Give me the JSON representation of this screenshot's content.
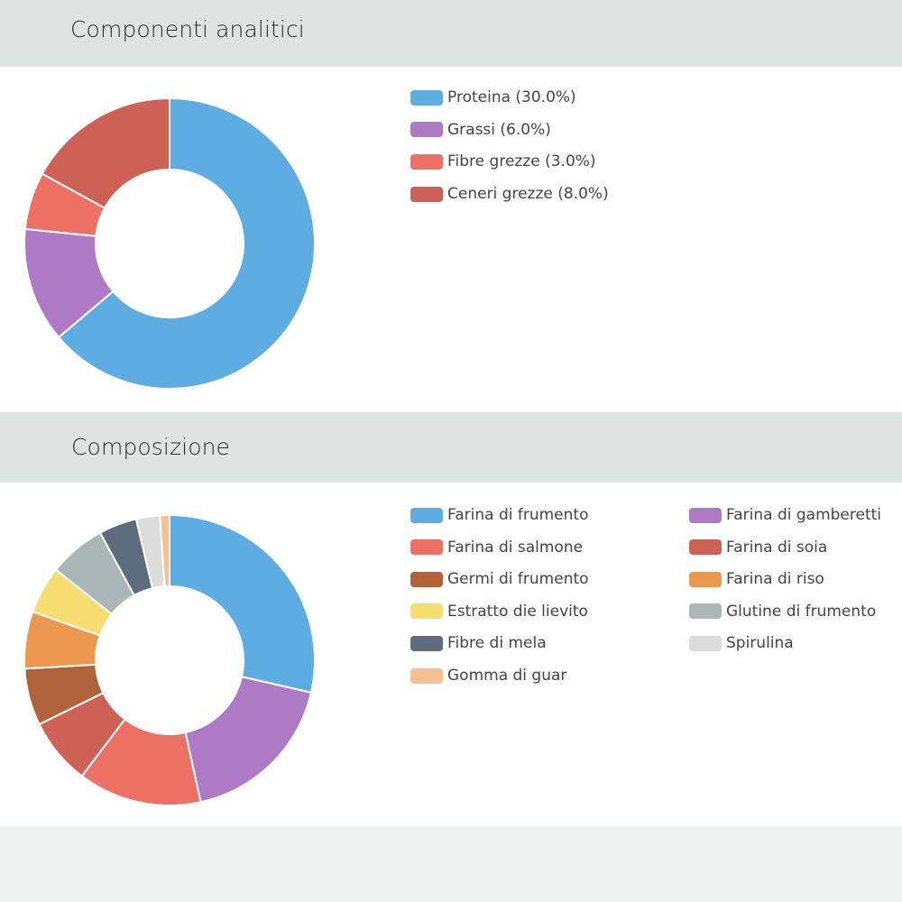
{
  "sections": {
    "analytical": {
      "title": "Componenti analitici"
    },
    "composition": {
      "title": "Composizione"
    }
  },
  "chart_data": [
    {
      "type": "pie",
      "variant": "donut",
      "title": "Componenti analitici",
      "legend_position": "right",
      "series": [
        {
          "name": "Proteina (30.0%)",
          "value": 30.0,
          "color": "#5dade2"
        },
        {
          "name": "Grassi (6.0%)",
          "value": 6.0,
          "color": "#af7ac5"
        },
        {
          "name": "Fibre grezze (3.0%)",
          "value": 3.0,
          "color": "#ec7063"
        },
        {
          "name": "Ceneri grezze (8.0%)",
          "value": 8.0,
          "color": "#cd6155"
        }
      ]
    },
    {
      "type": "pie",
      "variant": "donut",
      "title": "Composizione",
      "legend_position": "right",
      "series": [
        {
          "name": "Farina di frumento",
          "value": 27,
          "color": "#5dade2"
        },
        {
          "name": "Farina di gamberetti",
          "value": 17,
          "color": "#af7ac5"
        },
        {
          "name": "Farina di salmone",
          "value": 13,
          "color": "#ec7063"
        },
        {
          "name": "Farina di soia",
          "value": 7,
          "color": "#cd6155"
        },
        {
          "name": "Germi di frumento",
          "value": 6,
          "color": "#b0623a"
        },
        {
          "name": "Farina di riso",
          "value": 6,
          "color": "#eb984e"
        },
        {
          "name": "Estratto die lievito",
          "value": 5,
          "color": "#f7dc6f"
        },
        {
          "name": "Glutine di frumento",
          "value": 6,
          "color": "#aab7b8"
        },
        {
          "name": "Fibre di mela",
          "value": 4,
          "color": "#5d6d7e"
        },
        {
          "name": "Spirulina",
          "value": 2.5,
          "color": "#dcdcdc"
        },
        {
          "name": "Gomma di guar",
          "value": 1,
          "color": "#f5c093"
        }
      ]
    }
  ]
}
